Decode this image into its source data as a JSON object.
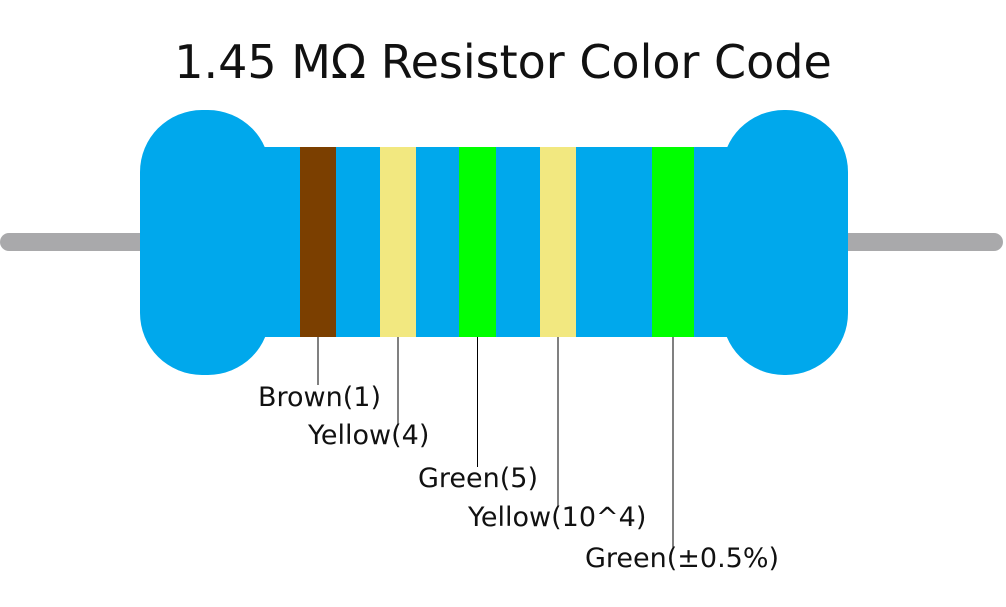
{
  "title": "1.45 MΩ Resistor Color Code",
  "bands": [
    {
      "label": "Brown(1)",
      "color": "#7b3f00"
    },
    {
      "label": "Yellow(4)",
      "color": "#f2e880"
    },
    {
      "label": "Green(5)",
      "color": "#00ff00"
    },
    {
      "label": "Yellow(10^4)",
      "color": "#f2e880"
    },
    {
      "label": "Green(±0.5%)",
      "color": "#00ff00"
    }
  ]
}
